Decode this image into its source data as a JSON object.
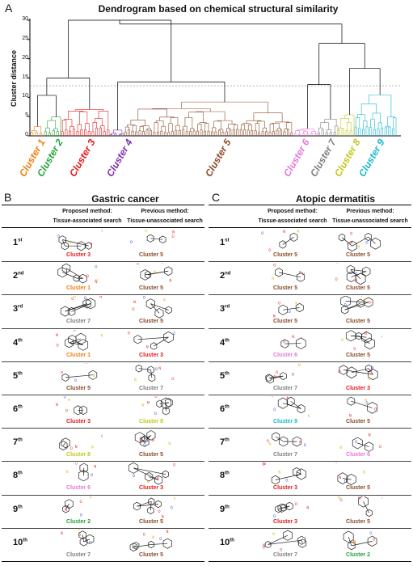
{
  "panelA": {
    "letter": "A",
    "title": "Dendrogram based on chemical structural similarity",
    "ylabel": "Cluster distance",
    "yticks": [
      "30",
      "25",
      "20",
      "15",
      "10",
      "5",
      "0"
    ],
    "clusters": [
      {
        "label": "Cluster 1",
        "color": "#f07f0f"
      },
      {
        "label": "Cluster 2",
        "color": "#23a33a"
      },
      {
        "label": "Cluster 3",
        "color": "#e41a1c"
      },
      {
        "label": "Cluster 4",
        "color": "#7e2fb2"
      },
      {
        "label": "Cluster 5",
        "color": "#8a4a2a"
      },
      {
        "label": "Cluster 6",
        "color": "#e777d8"
      },
      {
        "label": "Cluster 7",
        "color": "#7f7f7f"
      },
      {
        "label": "Cluster 8",
        "color": "#c3c81a"
      },
      {
        "label": "Cluster 9",
        "color": "#19b8cf"
      }
    ]
  },
  "panelB": {
    "letter": "B",
    "title": "Gastric cancer",
    "col1": [
      "Proposed method:",
      "Tissue-associated search"
    ],
    "col2": [
      "Previous method:",
      "Tissue-unassociated search"
    ],
    "rows": [
      {
        "rank": "1",
        "sup": "st",
        "left": "Cluster 3",
        "right": "Cluster 5"
      },
      {
        "rank": "2",
        "sup": "nd",
        "left": "Cluster 1",
        "right": "Cluster 5"
      },
      {
        "rank": "3",
        "sup": "rd",
        "left": "Cluster 7",
        "right": "Cluster 5"
      },
      {
        "rank": "4",
        "sup": "th",
        "left": "Cluster 1",
        "right": "Cluster 3"
      },
      {
        "rank": "5",
        "sup": "th",
        "left": "Cluster 5",
        "right": "Cluster 7"
      },
      {
        "rank": "6",
        "sup": "th",
        "left": "Cluster 3",
        "right": "Cluster 8"
      },
      {
        "rank": "7",
        "sup": "th",
        "left": "Cluster 8",
        "right": "Cluster 5"
      },
      {
        "rank": "8",
        "sup": "th",
        "left": "Cluster 6",
        "right": "Cluster 3"
      },
      {
        "rank": "9",
        "sup": "th",
        "left": "Cluster 2",
        "right": "Cluster 5"
      },
      {
        "rank": "10",
        "sup": "th",
        "left": "Cluster 7",
        "right": "Cluster 5"
      }
    ]
  },
  "panelC": {
    "letter": "C",
    "title": "Atopic dermatitis",
    "col1": [
      "Proposed method:",
      "Tissue-associated search"
    ],
    "col2": [
      "Previous method:",
      "Tissue-unassociated search"
    ],
    "rows": [
      {
        "rank": "1",
        "sup": "st",
        "left": "Cluster 5",
        "right": "Cluster 5"
      },
      {
        "rank": "2",
        "sup": "nd",
        "left": "Cluster 5",
        "right": "Cluster 5"
      },
      {
        "rank": "3",
        "sup": "rd",
        "left": "Cluster 5",
        "right": "Cluster 5"
      },
      {
        "rank": "4",
        "sup": "th",
        "left": "Cluster 6",
        "right": "Cluster 5"
      },
      {
        "rank": "5",
        "sup": "th",
        "left": "Cluster 7",
        "right": "Cluster 3"
      },
      {
        "rank": "6",
        "sup": "th",
        "left": "Cluster 9",
        "right": "Cluster 5"
      },
      {
        "rank": "7",
        "sup": "th",
        "left": "Cluster 7",
        "right": "Cluster 6"
      },
      {
        "rank": "8",
        "sup": "th",
        "left": "Cluster 3",
        "right": "Cluster 5"
      },
      {
        "rank": "9",
        "sup": "th",
        "left": "Cluster 3",
        "right": "Cluster 5"
      },
      {
        "rank": "10",
        "sup": "th",
        "left": "Cluster 7",
        "right": "Cluster 2"
      }
    ]
  }
}
